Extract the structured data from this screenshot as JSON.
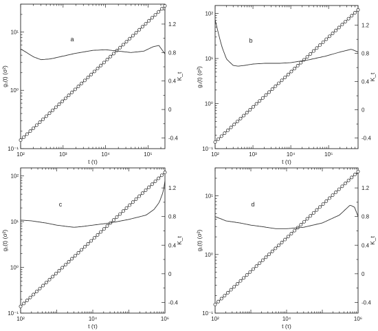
{
  "chart_data": [
    {
      "type": "line",
      "panel_label": "a",
      "xlabel": "t (τ)",
      "ylabel_left": "g₁(t) (σ²)",
      "ylabel_right": "K_t",
      "x_scale": "log",
      "y_left_scale": "log",
      "y_right_scale": "linear",
      "xlim": [
        100,
        250000
      ],
      "ylim_left": [
        0.1,
        30
      ],
      "ylim_right": [
        -0.55,
        1.48
      ],
      "x_ticks": [
        {
          "v": 100,
          "label": "10²"
        },
        {
          "v": 1000,
          "label": "10³"
        },
        {
          "v": 10000,
          "label": "10⁴"
        },
        {
          "v": 100000,
          "label": "10⁵"
        }
      ],
      "y_left_ticks": [
        {
          "v": 0.1,
          "label": "10⁻¹"
        },
        {
          "v": 1,
          "label": "10⁰"
        },
        {
          "v": 10,
          "label": "10¹"
        }
      ],
      "y_right_ticks": [
        {
          "v": -0.4,
          "label": "-0.4"
        },
        {
          "v": 0,
          "label": "0"
        },
        {
          "v": 0.4,
          "label": "0.4"
        },
        {
          "v": 0.8,
          "label": "0.8"
        },
        {
          "v": 1.2,
          "label": "1.2"
        }
      ],
      "series": [
        {
          "axis": "left",
          "marker": "circle",
          "x": [
            100,
            250000
          ],
          "y": [
            0.14,
            28
          ]
        },
        {
          "axis": "right",
          "marker": "none",
          "x": [
            100,
            130,
            200,
            300,
            500,
            1000,
            2000,
            5000,
            10000,
            20000,
            40000,
            80000,
            130000,
            180000,
            250000
          ],
          "y": [
            0.85,
            0.81,
            0.74,
            0.7,
            0.71,
            0.75,
            0.79,
            0.83,
            0.84,
            0.82,
            0.8,
            0.82,
            0.88,
            0.9,
            0.78
          ]
        }
      ]
    },
    {
      "type": "line",
      "panel_label": "b",
      "xlabel": "t (τ)",
      "ylabel_left": "g₁(t) (σ²)",
      "ylabel_right": "K_t",
      "x_scale": "log",
      "y_left_scale": "log",
      "y_right_scale": "linear",
      "xlim": [
        100,
        600000
      ],
      "ylim_left": [
        0.1,
        150
      ],
      "ylim_right": [
        -0.55,
        1.48
      ],
      "x_ticks": [
        {
          "v": 100,
          "label": "10²"
        },
        {
          "v": 1000,
          "label": "10³"
        },
        {
          "v": 10000,
          "label": "10⁴"
        },
        {
          "v": 100000,
          "label": "10⁵"
        }
      ],
      "y_left_ticks": [
        {
          "v": 0.1,
          "label": "10⁻¹"
        },
        {
          "v": 1,
          "label": "10⁰"
        },
        {
          "v": 10,
          "label": "10¹"
        },
        {
          "v": 100,
          "label": "10²"
        }
      ],
      "y_right_ticks": [
        {
          "v": -0.4,
          "label": "-0.4"
        },
        {
          "v": 0,
          "label": "0"
        },
        {
          "v": 0.4,
          "label": "0.4"
        },
        {
          "v": 0.8,
          "label": "0.8"
        },
        {
          "v": 1.2,
          "label": "1.2"
        }
      ],
      "series": [
        {
          "axis": "left",
          "marker": "circle",
          "x": [
            100,
            600000
          ],
          "y": [
            0.14,
            120
          ]
        },
        {
          "axis": "right",
          "marker": "none",
          "x": [
            100,
            120,
            150,
            200,
            300,
            400,
            600,
            1000,
            2000,
            5000,
            10000,
            30000,
            80000,
            200000,
            400000,
            600000
          ],
          "y": [
            1.28,
            1.1,
            0.9,
            0.72,
            0.63,
            0.62,
            0.63,
            0.65,
            0.66,
            0.66,
            0.67,
            0.71,
            0.76,
            0.82,
            0.86,
            0.82
          ]
        }
      ]
    },
    {
      "type": "line",
      "panel_label": "c",
      "xlabel": "t (τ)",
      "ylabel_left": "g₁(t) (σ²)",
      "ylabel_right": "K_t",
      "x_scale": "log",
      "y_left_scale": "log",
      "y_right_scale": "linear",
      "xlim": [
        100,
        1000000
      ],
      "ylim_left": [
        0.1,
        150
      ],
      "ylim_right": [
        -0.55,
        1.48
      ],
      "x_ticks": [
        {
          "v": 100,
          "label": "10²"
        },
        {
          "v": 10000,
          "label": "10⁴"
        },
        {
          "v": 1000000,
          "label": "10⁶"
        }
      ],
      "y_left_ticks": [
        {
          "v": 0.1,
          "label": "10⁻¹"
        },
        {
          "v": 1,
          "label": "10⁰"
        },
        {
          "v": 10,
          "label": "10¹"
        },
        {
          "v": 100,
          "label": "10²"
        }
      ],
      "y_right_ticks": [
        {
          "v": -0.4,
          "label": "-0.4"
        },
        {
          "v": 0,
          "label": "0"
        },
        {
          "v": 0.4,
          "label": "0.4"
        },
        {
          "v": 0.8,
          "label": "0.8"
        },
        {
          "v": 1.2,
          "label": "1.2"
        }
      ],
      "series": [
        {
          "axis": "left",
          "marker": "circle",
          "x": [
            100,
            1000000
          ],
          "y": [
            0.14,
            120
          ]
        },
        {
          "axis": "right",
          "marker": "none",
          "x": [
            100,
            200,
            500,
            1000,
            2000,
            3000,
            5000,
            10000,
            30000,
            100000,
            300000,
            500000,
            700000,
            900000,
            1000000
          ],
          "y": [
            0.75,
            0.74,
            0.71,
            0.68,
            0.66,
            0.65,
            0.66,
            0.68,
            0.71,
            0.76,
            0.82,
            0.9,
            1.0,
            1.15,
            1.3
          ]
        }
      ]
    },
    {
      "type": "line",
      "panel_label": "d",
      "xlabel": "t (τ)",
      "ylabel_left": "g₁(t) (σ²)",
      "ylabel_right": "K_t",
      "x_scale": "log",
      "y_left_scale": "log",
      "y_right_scale": "linear",
      "xlim": [
        100,
        1000000
      ],
      "ylim_left": [
        0.1,
        30
      ],
      "ylim_right": [
        -0.55,
        1.48
      ],
      "x_ticks": [
        {
          "v": 100,
          "label": "10²"
        },
        {
          "v": 10000,
          "label": "10⁴"
        },
        {
          "v": 1000000,
          "label": "10⁶"
        }
      ],
      "y_left_ticks": [
        {
          "v": 0.1,
          "label": "10⁻¹"
        },
        {
          "v": 1,
          "label": "10⁰"
        },
        {
          "v": 10,
          "label": "10¹"
        }
      ],
      "y_right_ticks": [
        {
          "v": -0.4,
          "label": "-0.4"
        },
        {
          "v": 0,
          "label": "0"
        },
        {
          "v": 0.4,
          "label": "0.4"
        },
        {
          "v": 0.8,
          "label": "0.8"
        },
        {
          "v": 1.2,
          "label": "1.2"
        }
      ],
      "series": [
        {
          "axis": "left",
          "marker": "circle",
          "x": [
            100,
            1000000
          ],
          "y": [
            0.14,
            26
          ]
        },
        {
          "axis": "right",
          "marker": "none",
          "x": [
            100,
            200,
            500,
            1000,
            2000,
            5000,
            10000,
            30000,
            100000,
            300000,
            600000,
            800000,
            1000000
          ],
          "y": [
            0.8,
            0.74,
            0.71,
            0.68,
            0.66,
            0.63,
            0.63,
            0.65,
            0.71,
            0.82,
            0.96,
            0.93,
            0.8
          ]
        }
      ]
    }
  ]
}
